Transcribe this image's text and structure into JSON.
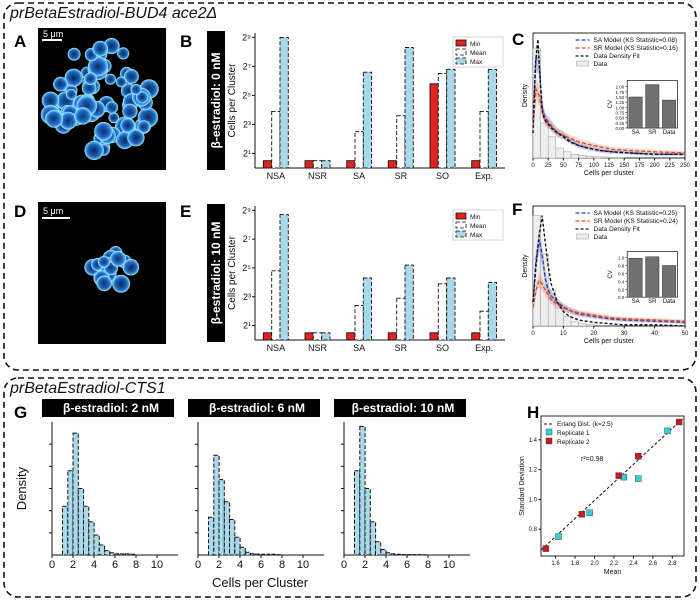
{
  "panel_titles": {
    "top": "prBetaEstradiol-BUD4 ace2Δ",
    "bottom": "prBetaEstradiol-CTS1"
  },
  "panel_letters": [
    "A",
    "B",
    "C",
    "D",
    "E",
    "F",
    "G",
    "H"
  ],
  "micrographs": {
    "A": {
      "scale_label": "5 μm"
    },
    "D": {
      "scale_label": "5 μm"
    }
  },
  "colors": {
    "min": "#e0231f",
    "mean": "#ffffff",
    "max": "#a9d8e8",
    "hist": "#a9d8e8",
    "sa": "#2a3fbf",
    "sr": "#d9502a",
    "rep1": "#33d0d6",
    "rep2": "#c0201f"
  },
  "chart_data": [
    {
      "id": "B",
      "type": "bar",
      "side_label": "β-estradiol: 0 nM",
      "ylabel": "Cells per Cluster",
      "categories": [
        "NSA",
        "NSR",
        "SA",
        "SR",
        "SO",
        "Exp."
      ],
      "ytick_labels": [
        "2⁹",
        "2⁷",
        "2⁵",
        "2³",
        "2¹"
      ],
      "ytick_exponents": [
        9,
        7,
        5,
        3,
        1
      ],
      "ylim_log2": [
        0,
        9.3
      ],
      "legend": [
        "Min",
        "Mean",
        "Max"
      ],
      "series": [
        {
          "name": "Min",
          "values_log2": [
            0.5,
            0.5,
            0.5,
            0.5,
            5.8,
            0.5
          ]
        },
        {
          "name": "Mean",
          "values_log2": [
            3.9,
            0.5,
            2.5,
            3.6,
            6.5,
            3.9
          ]
        },
        {
          "name": "Max",
          "values_log2": [
            9.0,
            0.5,
            6.6,
            8.3,
            6.8,
            6.8
          ]
        }
      ]
    },
    {
      "id": "E",
      "type": "bar",
      "side_label": "β-estradiol: 10 nM",
      "ylabel": "Cells per Cluster",
      "categories": [
        "NSA",
        "NSR",
        "SA",
        "SR",
        "SO",
        "Exp."
      ],
      "ytick_labels": [
        "2⁹",
        "2⁷",
        "2⁵",
        "2³",
        "2¹"
      ],
      "ytick_exponents": [
        9,
        7,
        5,
        3,
        1
      ],
      "ylim_log2": [
        0,
        9.3
      ],
      "legend": [
        "Min",
        "Mean",
        "Max"
      ],
      "series": [
        {
          "name": "Min",
          "values_log2": [
            0.5,
            0.5,
            0.5,
            0.5,
            0.5,
            0.5
          ]
        },
        {
          "name": "Mean",
          "values_log2": [
            4.8,
            0.5,
            2.4,
            2.9,
            3.9,
            2.0
          ]
        },
        {
          "name": "Max",
          "values_log2": [
            8.7,
            0.5,
            4.3,
            5.2,
            4.3,
            4.0
          ]
        }
      ]
    },
    {
      "id": "C",
      "type": "line",
      "xlabel": "Cells per cluster",
      "ylabel": "Density",
      "xlim": [
        0,
        250
      ],
      "xticks": [
        0,
        25,
        50,
        75,
        100,
        125,
        150,
        175,
        200,
        225,
        250
      ],
      "ylim": [
        0,
        1.0
      ],
      "legend": [
        "SA Model (KS Statistic=0.08)",
        "SR Model (KS Statistic=0.16)",
        "Data Density Fit",
        "Data"
      ],
      "hist": {
        "bin_edges": [
          0,
          12.5,
          25,
          37.5,
          50,
          62.5,
          75,
          87.5,
          100,
          112.5,
          125,
          137.5,
          150
        ],
        "values": [
          0.88,
          0.28,
          0.17,
          0.08,
          0.05,
          0.03,
          0.02,
          0.015,
          0.01,
          0.008,
          0.005,
          0.003
        ]
      },
      "series": [
        {
          "name": "SA Model (KS Statistic=0.08)",
          "x": [
            0,
            5,
            10,
            15,
            20,
            30,
            40,
            50,
            60,
            75,
            90,
            110,
            130,
            160,
            200,
            250
          ],
          "y": [
            0.3,
            0.8,
            0.78,
            0.4,
            0.32,
            0.26,
            0.2,
            0.18,
            0.14,
            0.1,
            0.08,
            0.06,
            0.05,
            0.04,
            0.03,
            0.03
          ]
        },
        {
          "name": "SR Model (KS Statistic=0.16)",
          "x": [
            0,
            5,
            10,
            15,
            20,
            30,
            40,
            50,
            60,
            75,
            90,
            110,
            130,
            160,
            200,
            250
          ],
          "y": [
            0.25,
            0.55,
            0.5,
            0.38,
            0.3,
            0.25,
            0.21,
            0.18,
            0.16,
            0.13,
            0.11,
            0.09,
            0.07,
            0.06,
            0.05,
            0.04
          ]
        },
        {
          "name": "Data Density Fit",
          "x": [
            0,
            4,
            8,
            12,
            16,
            20,
            30,
            40,
            50,
            60,
            75,
            90,
            110,
            130,
            160,
            200,
            250
          ],
          "y": [
            0.2,
            0.75,
            0.95,
            0.6,
            0.35,
            0.3,
            0.24,
            0.2,
            0.17,
            0.13,
            0.1,
            0.08,
            0.06,
            0.05,
            0.04,
            0.03,
            0.03
          ]
        }
      ],
      "inset": {
        "ylabel": "CV",
        "categories": [
          "SA",
          "SR",
          "Data"
        ],
        "values": [
          1.5,
          2.1,
          1.35
        ],
        "yticks": [
          0.0,
          0.25,
          0.5,
          0.75,
          1.0,
          1.25,
          1.5,
          1.75,
          2.0
        ],
        "ytick_labels": [
          "0.00",
          "0.25",
          "0.50",
          "0.75",
          "1.00",
          "1.25",
          "1.50",
          "1.75",
          "2.00"
        ],
        "ylim": [
          0,
          2.3
        ]
      }
    },
    {
      "id": "F",
      "type": "line",
      "xlabel": "Cells per cluster",
      "ylabel": "Density",
      "xlim": [
        0,
        50
      ],
      "xticks": [
        0,
        10,
        20,
        30,
        40,
        50
      ],
      "ylim": [
        0,
        1.0
      ],
      "legend": [
        "SA Model (KS Statistic=0.25)",
        "SR Model (KS Statistic=0.24)",
        "Data Density Fit",
        "Data"
      ],
      "hist": {
        "bin_edges": [
          0,
          2.5,
          5,
          7.5,
          10,
          12.5,
          15,
          17.5,
          20
        ],
        "values": [
          0.92,
          0.6,
          0.3,
          0.15,
          0.08,
          0.04,
          0.02,
          0.01
        ]
      },
      "series": [
        {
          "name": "SA Model (KS Statistic=0.25)",
          "x": [
            0,
            1,
            2,
            3,
            4,
            5,
            6,
            8,
            10,
            12,
            15,
            20,
            25,
            30,
            40,
            50
          ],
          "y": [
            0.2,
            0.55,
            0.72,
            0.6,
            0.4,
            0.3,
            0.25,
            0.2,
            0.16,
            0.13,
            0.1,
            0.08,
            0.06,
            0.05,
            0.04,
            0.03
          ]
        },
        {
          "name": "SR Model (KS Statistic=0.24)",
          "x": [
            0,
            1,
            2,
            3,
            4,
            5,
            6,
            8,
            10,
            12,
            15,
            20,
            25,
            30,
            40,
            50
          ],
          "y": [
            0.15,
            0.3,
            0.38,
            0.35,
            0.3,
            0.26,
            0.22,
            0.18,
            0.15,
            0.13,
            0.11,
            0.09,
            0.07,
            0.06,
            0.05,
            0.04
          ]
        },
        {
          "name": "Data Density Fit",
          "x": [
            0,
            1,
            2,
            3,
            4,
            5,
            6,
            8,
            10,
            12,
            15,
            20,
            25,
            30,
            40,
            50
          ],
          "y": [
            0.2,
            0.5,
            0.75,
            0.92,
            0.7,
            0.5,
            0.35,
            0.2,
            0.12,
            0.08,
            0.05,
            0.03,
            0.02,
            0.01,
            0.01,
            0.0
          ]
        }
      ],
      "inset": {
        "ylabel": "CV",
        "categories": [
          "SA",
          "SR",
          "Data"
        ],
        "values": [
          0.98,
          1.02,
          0.8
        ],
        "yticks": [
          0.0,
          0.2,
          0.4,
          0.6,
          0.8,
          1.0
        ],
        "ytick_labels": [
          "0.0",
          "0.2",
          "0.4",
          "0.6",
          "0.8",
          "1.0"
        ],
        "ylim": [
          0,
          1.15
        ]
      }
    },
    {
      "id": "G",
      "type": "bar",
      "ylabel": "Density",
      "xlabel": "Cells per Cluster",
      "xticks": [
        0,
        2,
        4,
        6,
        8,
        10
      ],
      "xlim": [
        0,
        12
      ],
      "ylim": [
        0,
        0.6
      ],
      "subplots": [
        {
          "title": "β-estradiol: 2 nM",
          "bin_edges": [
            1,
            1.5,
            2,
            2.5,
            3,
            3.5,
            4,
            4.5,
            5,
            5.5,
            6,
            6.5,
            7,
            7.5,
            8
          ],
          "values": [
            0.22,
            0.38,
            0.55,
            0.3,
            0.22,
            0.15,
            0.09,
            0.045,
            0.02,
            0.01,
            0.005,
            0.005,
            0.005,
            0.003
          ]
        },
        {
          "title": "β-estradiol: 6 nM",
          "bin_edges": [
            1,
            1.5,
            2,
            2.5,
            3,
            3.5,
            4,
            4.5,
            5,
            5.5,
            6,
            6.5,
            7,
            7.5,
            8
          ],
          "values": [
            0.17,
            0.45,
            0.34,
            0.24,
            0.16,
            0.08,
            0.035,
            0.012,
            0.006,
            0.004,
            0.003,
            0.003,
            0.003,
            0.002
          ]
        },
        {
          "title": "β-estradiol: 10 nM",
          "bin_edges": [
            1,
            1.5,
            2,
            2.5,
            3,
            3.5,
            4,
            4.5,
            5,
            5.5,
            6,
            6.5,
            7,
            7.5,
            8
          ],
          "values": [
            0.38,
            0.58,
            0.3,
            0.15,
            0.06,
            0.025,
            0.01,
            0.005,
            0.003,
            0.002,
            0.002,
            0.002,
            0.002,
            0.001
          ]
        }
      ]
    },
    {
      "id": "H",
      "type": "scatter",
      "xlabel": "Mean",
      "ylabel": "Standard Deviation",
      "xlim": [
        1.45,
        2.92
      ],
      "ylim": [
        0.62,
        1.56
      ],
      "xticks": [
        1.6,
        1.8,
        2.0,
        2.2,
        2.4,
        2.6,
        2.8
      ],
      "xtick_labels": [
        "1.6",
        "1.8",
        "2.0",
        "2.2",
        "2.4",
        "2.6",
        "2.8"
      ],
      "yticks": [
        0.8,
        1.0,
        1.2,
        1.4
      ],
      "ytick_labels": [
        "0.8",
        "1.0",
        "1.2",
        "1.4"
      ],
      "annotation": "r²=0.98",
      "legend": [
        "Erlang Dist. (k=2.5)",
        "Replicate 1",
        "Replicate 2"
      ],
      "line": {
        "name": "Erlang Dist. (k=2.5)",
        "x": [
          1.45,
          2.92
        ],
        "y": [
          0.66,
          1.55
        ]
      },
      "series": [
        {
          "name": "Replicate 1",
          "x": [
            1.63,
            1.95,
            2.3,
            2.45,
            2.75
          ],
          "y": [
            0.75,
            0.91,
            1.15,
            1.14,
            1.46
          ]
        },
        {
          "name": "Replicate 2",
          "x": [
            1.5,
            1.87,
            2.25,
            2.45,
            2.87
          ],
          "y": [
            0.67,
            0.9,
            1.16,
            1.29,
            1.52
          ]
        }
      ]
    }
  ]
}
